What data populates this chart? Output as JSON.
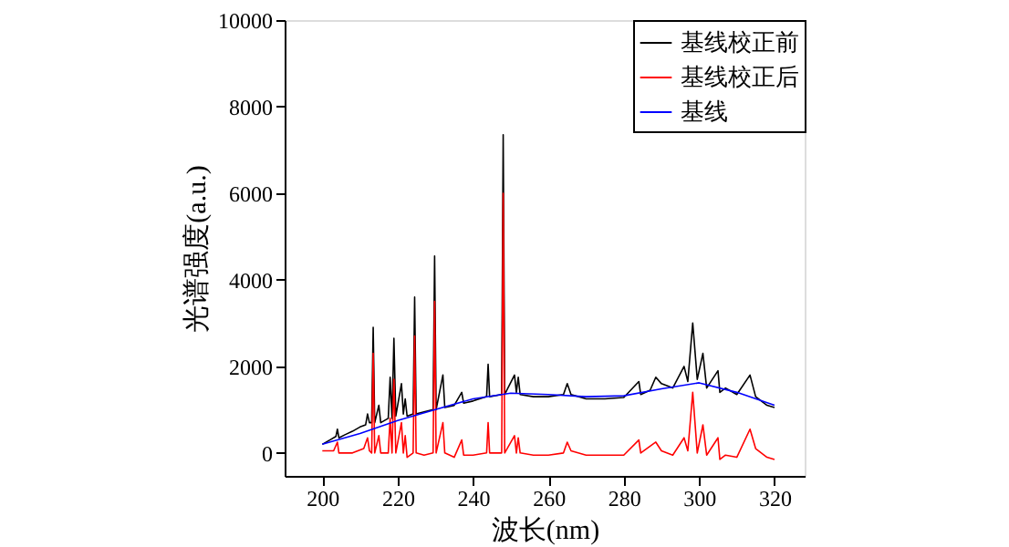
{
  "chart_data": {
    "type": "line",
    "xlabel": "波长(nm)",
    "ylabel": "光谱强度(a.u.)",
    "xlim": [
      190,
      328
    ],
    "ylim": [
      -530,
      10000
    ],
    "xticks": [
      200,
      220,
      240,
      260,
      280,
      300,
      320
    ],
    "yticks": [
      0,
      2000,
      4000,
      6000,
      8000,
      10000
    ],
    "grid": false,
    "legend": "top right",
    "marker": "none",
    "line_style": "solid",
    "series": [
      {
        "name": "基线校正前",
        "color": "#000000",
        "x": [
          200,
          202,
          203.6,
          204,
          204.4,
          206,
          208,
          210,
          211.5,
          212,
          212.5,
          213.1,
          213.5,
          213.9,
          215,
          215.5,
          217.5,
          218,
          218.5,
          219,
          219.5,
          221,
          221.5,
          222,
          222.5,
          224.1,
          224.5,
          224.9,
          227,
          229.4,
          229.8,
          230.2,
          232,
          232.5,
          235,
          237,
          237.5,
          240,
          243.6,
          244,
          244.4,
          247.6,
          248,
          248.4,
          251,
          251.5,
          252,
          252.5,
          256,
          260,
          264,
          265,
          266,
          270,
          275,
          280,
          284,
          284.5,
          287,
          288.5,
          290,
          293,
          296,
          297,
          298.3,
          299.5,
          301,
          302,
          305,
          305.5,
          307,
          310,
          313.5,
          315,
          318,
          320
        ],
        "values": [
          200,
          300,
          380,
          550,
          350,
          420,
          500,
          600,
          650,
          900,
          700,
          700,
          2900,
          700,
          1100,
          700,
          800,
          1750,
          800,
          2650,
          850,
          1600,
          900,
          1250,
          850,
          900,
          3600,
          900,
          950,
          1000,
          4550,
          1000,
          1800,
          1050,
          1100,
          1400,
          1150,
          1200,
          1300,
          2050,
          1300,
          1350,
          7350,
          1350,
          1800,
          1400,
          1750,
          1350,
          1300,
          1300,
          1350,
          1600,
          1350,
          1250,
          1250,
          1280,
          1650,
          1350,
          1450,
          1750,
          1600,
          1500,
          2000,
          1650,
          3000,
          1700,
          2300,
          1500,
          1900,
          1400,
          1500,
          1350,
          1800,
          1300,
          1100,
          1050
        ]
      },
      {
        "name": "基线校正后",
        "color": "#ff0000",
        "x": [
          200,
          203,
          204,
          204.4,
          208,
          211,
          212,
          212.5,
          213.1,
          213.5,
          213.9,
          215,
          215.5,
          217.5,
          218,
          218.5,
          219,
          219.5,
          221,
          221.5,
          222,
          222.5,
          224.1,
          224.5,
          224.9,
          227,
          229.4,
          229.8,
          230.2,
          232,
          232.5,
          235,
          237,
          237.5,
          240,
          243.6,
          244,
          244.4,
          247.6,
          248,
          248.4,
          251,
          251.5,
          252,
          252.5,
          256,
          260,
          264,
          265,
          266,
          270,
          275,
          280,
          284,
          284.5,
          288.5,
          290,
          293,
          296,
          297,
          298.3,
          299.5,
          301,
          302,
          305,
          305.5,
          307,
          310,
          313.5,
          315,
          318,
          320
        ],
        "values": [
          50,
          50,
          250,
          0,
          0,
          100,
          350,
          50,
          0,
          2300,
          0,
          400,
          0,
          0,
          800,
          0,
          1700,
          0,
          700,
          0,
          400,
          -100,
          0,
          2700,
          0,
          -50,
          0,
          3500,
          0,
          700,
          0,
          -100,
          300,
          -50,
          -50,
          0,
          700,
          0,
          0,
          6000,
          0,
          400,
          0,
          350,
          0,
          -50,
          -50,
          0,
          250,
          50,
          -50,
          -50,
          -50,
          300,
          0,
          250,
          50,
          -50,
          350,
          50,
          1400,
          0,
          650,
          -50,
          350,
          -150,
          -50,
          -100,
          550,
          100,
          -100,
          -150
        ]
      },
      {
        "name": "基线",
        "color": "#0000ff",
        "x": [
          200,
          210,
          220,
          230,
          240,
          250,
          260,
          270,
          280,
          290,
          300,
          310,
          320
        ],
        "values": [
          200,
          450,
          750,
          1000,
          1250,
          1380,
          1350,
          1300,
          1320,
          1480,
          1620,
          1400,
          1100
        ]
      }
    ]
  }
}
